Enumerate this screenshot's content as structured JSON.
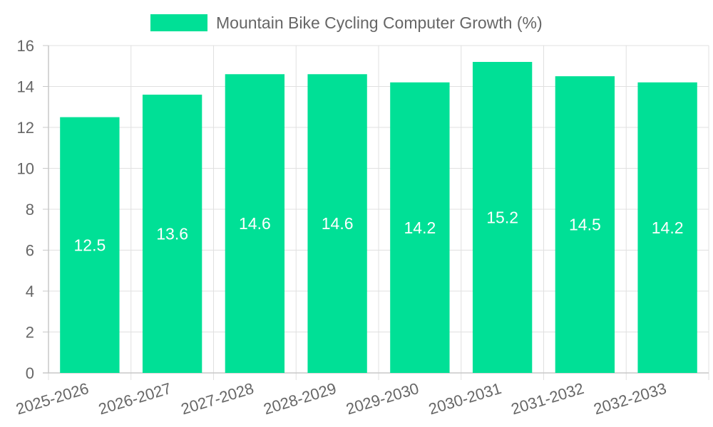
{
  "colors": {
    "bar": "#00e096",
    "grid": "#e0e0e0",
    "axis": "#c8c8c8",
    "text": "#666666",
    "data_label": "#ffffff"
  },
  "chart_data": {
    "type": "bar",
    "title": "",
    "xlabel": "",
    "ylabel": "",
    "categories": [
      "2025-2026",
      "2026-2027",
      "2027-2028",
      "2028-2029",
      "2029-2030",
      "2030-2031",
      "2031-2032",
      "2032-2033"
    ],
    "series": [
      {
        "name": "Mountain Bike Cycling Computer Growth (%)",
        "values": [
          12.5,
          13.6,
          14.6,
          14.6,
          14.2,
          15.2,
          14.5,
          14.2
        ]
      }
    ],
    "ylim": [
      0,
      16
    ],
    "yticks": [
      0,
      2,
      4,
      6,
      8,
      10,
      12,
      14,
      16
    ],
    "grid": true,
    "legend": "top-center",
    "data_labels": [
      "12.5",
      "13.6",
      "14.6",
      "14.6",
      "14.2",
      "15.2",
      "14.5",
      "14.2"
    ]
  }
}
